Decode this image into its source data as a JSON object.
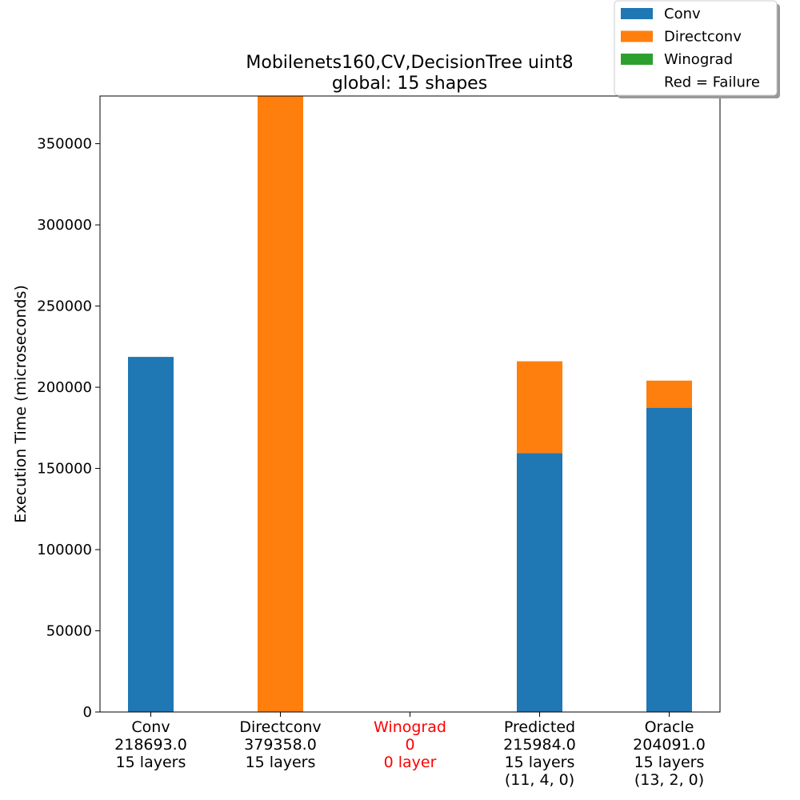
{
  "chart_data": {
    "type": "bar",
    "stacked": true,
    "title": "Mobilenets160,CV,DecisionTree uint8",
    "subtitle": "global: 15 shapes",
    "xlabel": "",
    "ylabel": "Execution Time (microseconds)",
    "ylim": [
      0,
      379358
    ],
    "yticks": [
      0,
      50000,
      100000,
      150000,
      200000,
      250000,
      300000,
      350000
    ],
    "grid": false,
    "legend_position": "top-right",
    "categories": [
      {
        "name": "Conv",
        "lines": [
          "218693.0",
          "15 layers"
        ],
        "failure": false
      },
      {
        "name": "Directconv",
        "lines": [
          "379358.0",
          "15 layers"
        ],
        "failure": false
      },
      {
        "name": "Winograd",
        "lines": [
          "0",
          "0 layer"
        ],
        "failure": true
      },
      {
        "name": "Predicted",
        "lines": [
          "215984.0",
          "15 layers",
          "(11, 4, 0)"
        ],
        "failure": false
      },
      {
        "name": "Oracle",
        "lines": [
          "204091.0",
          "15 layers",
          "(13, 2, 0)"
        ],
        "failure": false
      }
    ],
    "series": [
      {
        "name": "Conv",
        "color": "#1f77b4",
        "values": [
          218693,
          0,
          0,
          159500,
          187400
        ]
      },
      {
        "name": "Directconv",
        "color": "#ff7f0e",
        "values": [
          0,
          379358,
          0,
          56484,
          16691
        ]
      },
      {
        "name": "Winograd",
        "color": "#2ca02c",
        "values": [
          0,
          0,
          0,
          0,
          0
        ]
      }
    ],
    "legend_note": "Red = Failure",
    "failure_color": "#ff0000"
  }
}
